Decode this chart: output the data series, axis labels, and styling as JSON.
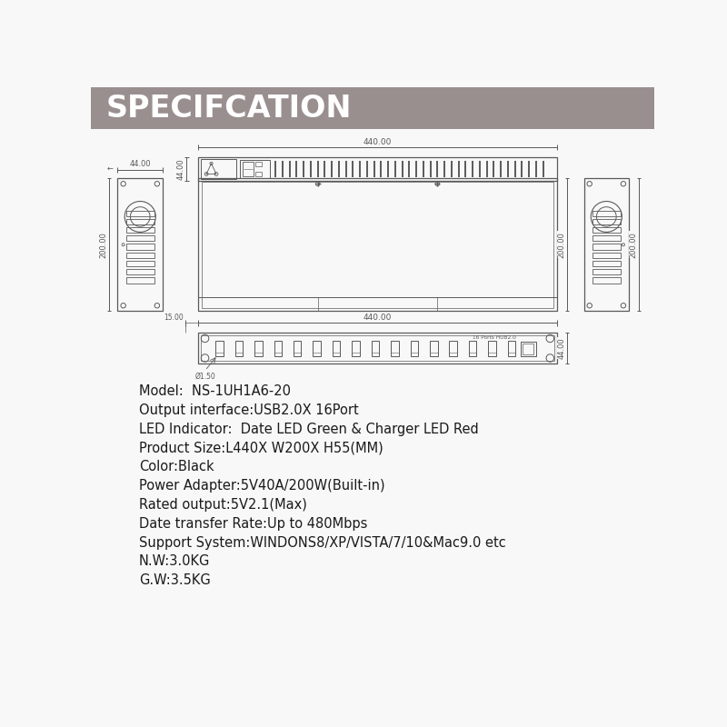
{
  "title": "SPECIFCATION",
  "title_bg_color": "#9a8f8f",
  "title_text_color": "#ffffff",
  "dc": "#5a5a5a",
  "bg_color": "#f8f8f8",
  "specs": [
    "Model:  NS-1UH1A6-20",
    "Output interface:USB2.0X 16Port",
    "LED Indicator:  Date LED Green & Charger LED Red",
    "Product Size:L440X W200X H55(MM)",
    "Color:Black",
    "Power Adapter:5V40A/200W(Built-in)",
    "Rated output:5V2.1(Max)",
    "Date transfer Rate:Up to 480Mbps",
    "Support System:WINDONS8/XP/VISTA/7/10&Mac9.0 etc",
    "N.W:3.0KG",
    "G.W:3.5KG"
  ]
}
